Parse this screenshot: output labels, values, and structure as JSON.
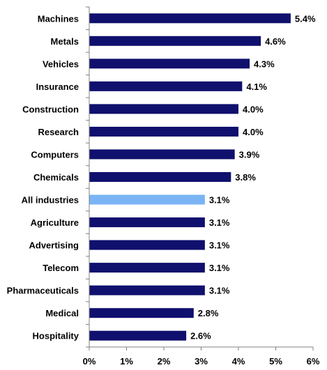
{
  "chart_data": {
    "type": "bar",
    "orientation": "horizontal",
    "categories": [
      "Machines",
      "Metals",
      "Vehicles",
      "Insurance",
      "Construction",
      "Research",
      "Computers",
      "Chemicals",
      "All industries",
      "Agriculture",
      "Advertising",
      "Telecom",
      "Pharmaceuticals",
      "Medical",
      "Hospitality"
    ],
    "values": [
      5.4,
      4.6,
      4.3,
      4.1,
      4.0,
      4.0,
      3.9,
      3.8,
      3.1,
      3.1,
      3.1,
      3.1,
      3.1,
      2.8,
      2.6
    ],
    "value_labels": [
      "5.4%",
      "4.6%",
      "4.3%",
      "4.1%",
      "4.0%",
      "4.0%",
      "3.9%",
      "3.8%",
      "3.1%",
      "3.1%",
      "3.1%",
      "3.1%",
      "3.1%",
      "2.8%",
      "2.6%"
    ],
    "highlight_category": "All industries",
    "xlim": [
      0,
      6
    ],
    "x_ticks": [
      0,
      1,
      2,
      3,
      4,
      5,
      6
    ],
    "x_tick_labels": [
      "0%",
      "1%",
      "2%",
      "3%",
      "4%",
      "5%",
      "6%"
    ],
    "grid": false,
    "legend": "none",
    "colors": {
      "bar": "#10106e",
      "highlight": "#7ab4f5",
      "axis": "#808080"
    }
  }
}
